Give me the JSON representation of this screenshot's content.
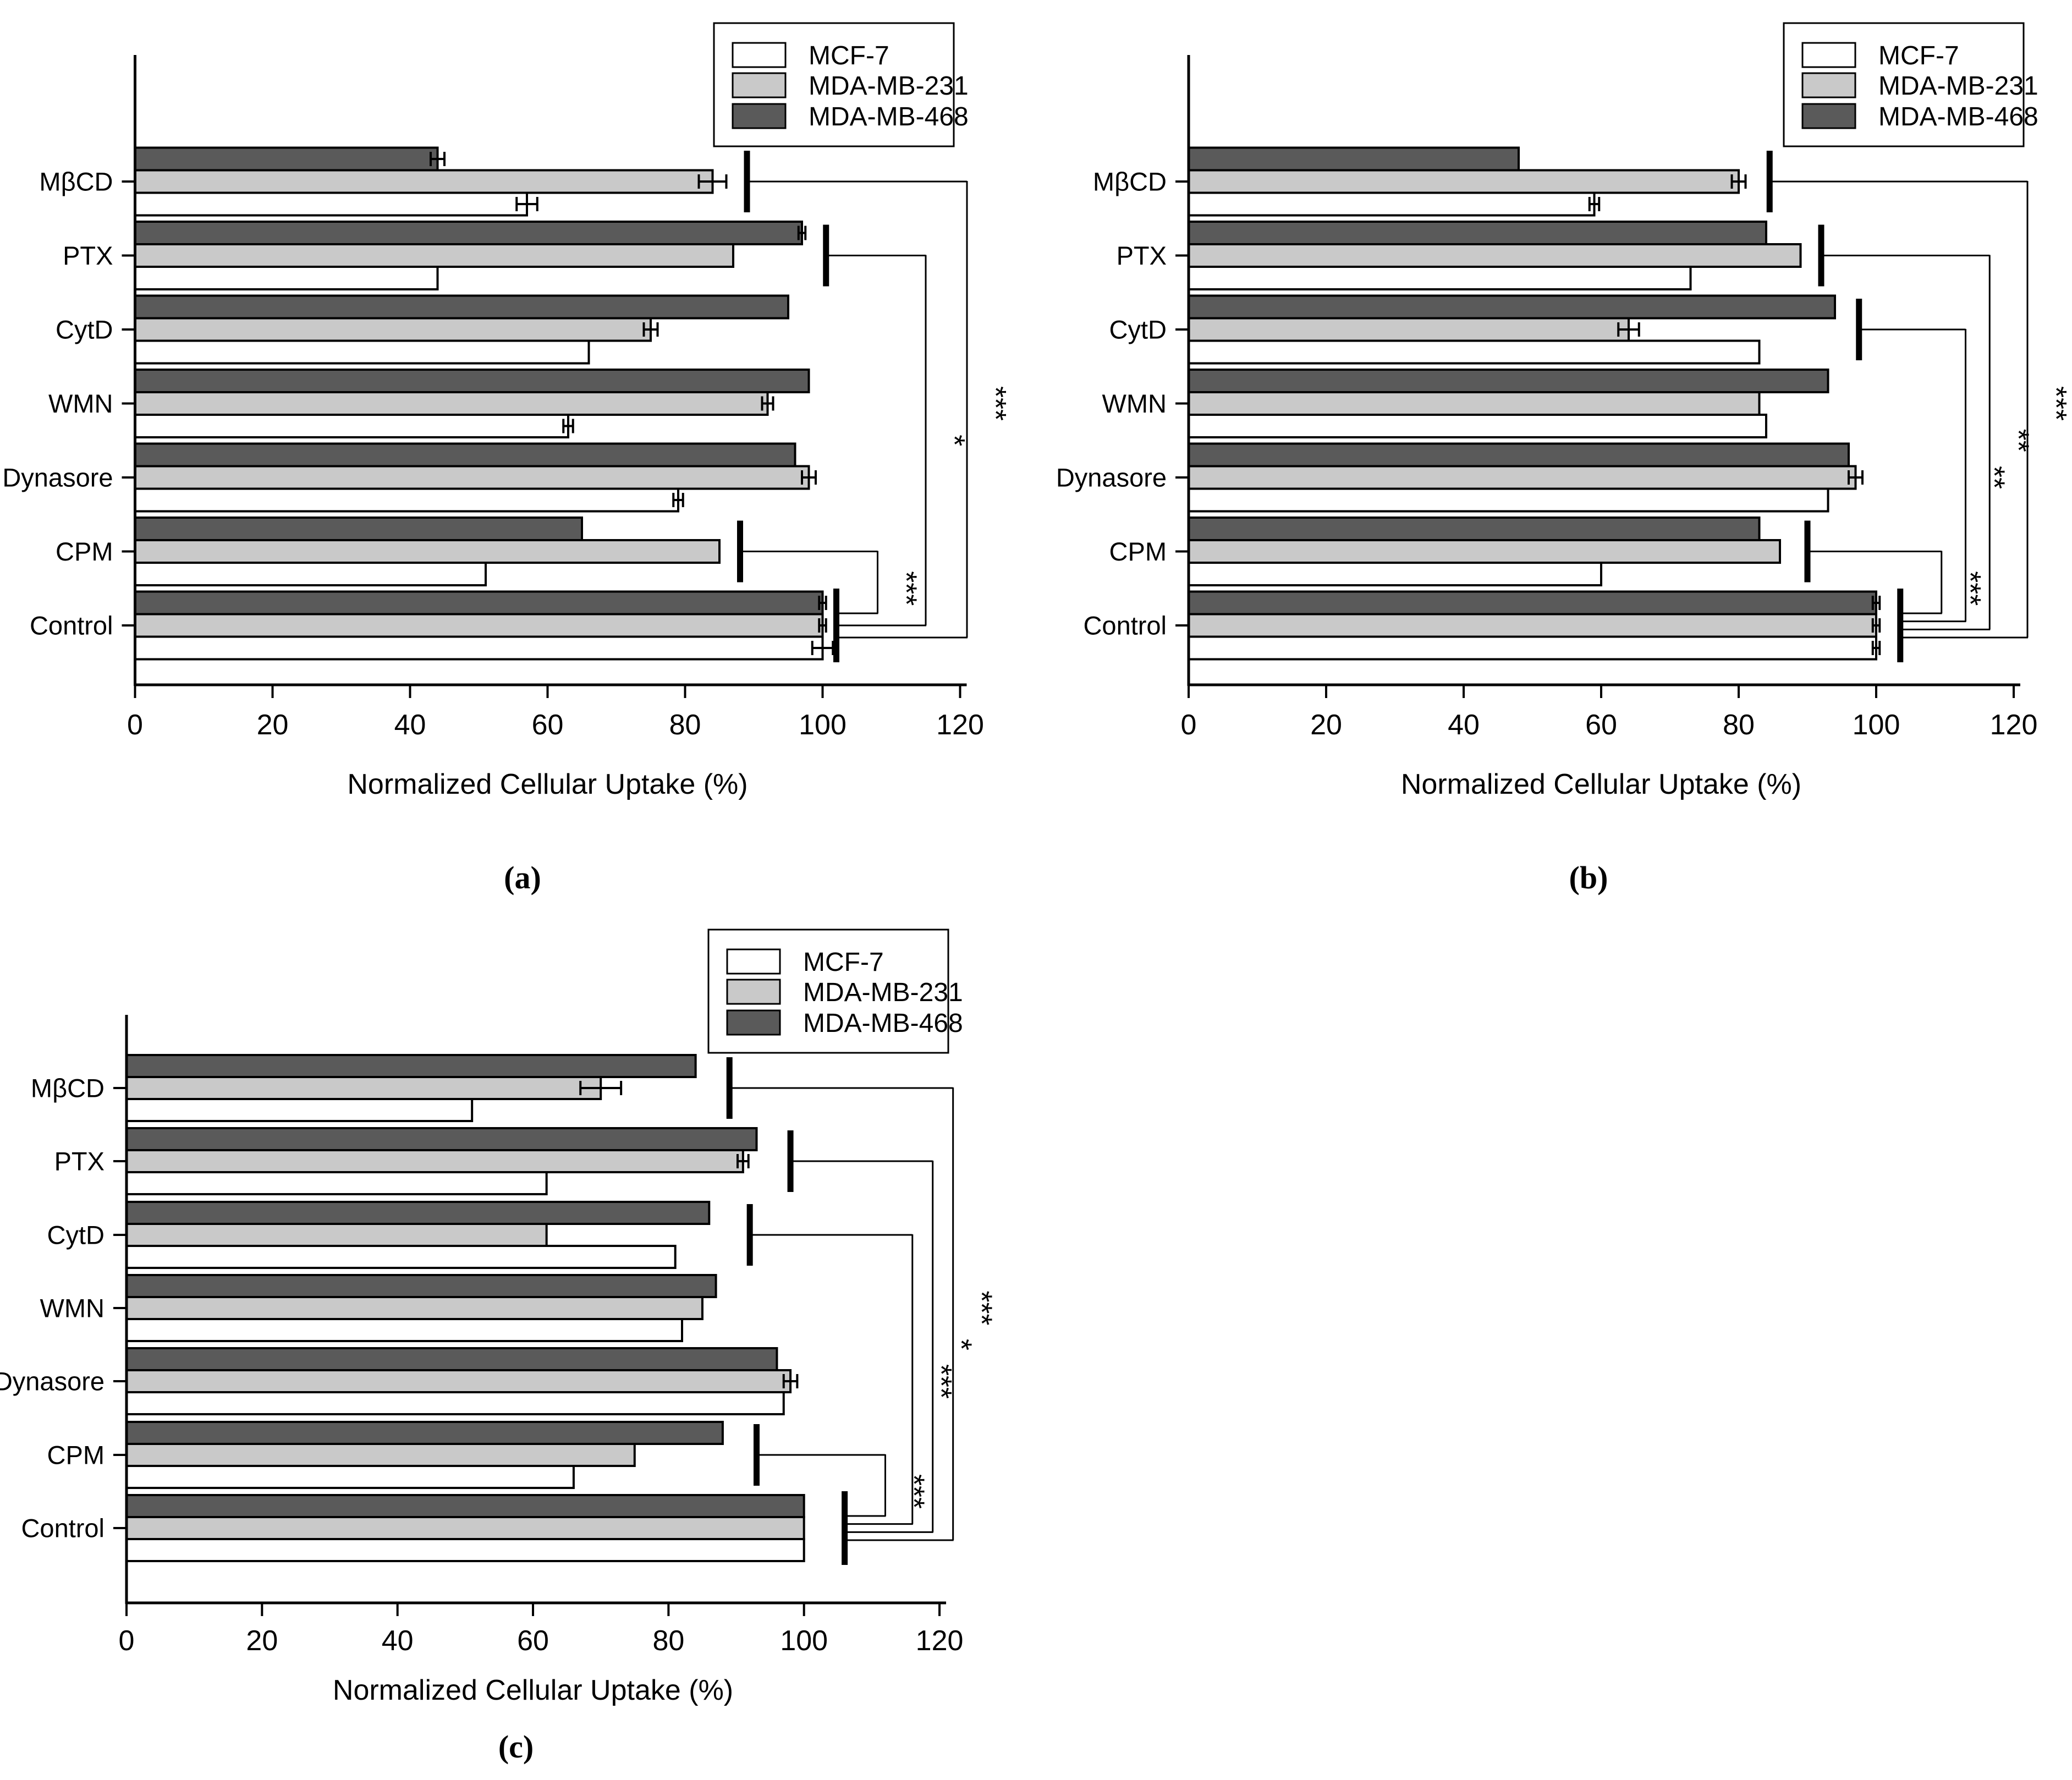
{
  "figure": {
    "background": "#ffffff",
    "bar_outline_color": "#000000",
    "legend": {
      "entries": [
        {
          "label": "MCF-7",
          "color": "#ffffff"
        },
        {
          "label": "MDA-MB-231",
          "color": "#c9c9c9"
        },
        {
          "label": "MDA-MB-468",
          "color": "#5a5a5a"
        }
      ]
    },
    "x_axis": {
      "title": "Normalized Cellular Uptake (%)",
      "ticks": [
        0,
        20,
        40,
        60,
        80,
        100,
        120
      ],
      "range": [
        0,
        120
      ]
    }
  },
  "chart_data": [
    {
      "id": "a",
      "panel_label": "(a)",
      "type": "bar",
      "orientation": "horizontal",
      "title": "",
      "xlabel": "Normalized Cellular Uptake (%)",
      "xlim": [
        0,
        120
      ],
      "categories": [
        "MβCD",
        "PTX",
        "CytD",
        "WMN",
        "Dynasore",
        "CPM",
        "Control"
      ],
      "series": [
        {
          "name": "MCF-7",
          "values": [
            57,
            44,
            66,
            63,
            79,
            51,
            100
          ],
          "errors": [
            1.5,
            0,
            0,
            0.7,
            0.7,
            0,
            1.5
          ]
        },
        {
          "name": "MDA-MB-231",
          "values": [
            84,
            87,
            75,
            92,
            98,
            85,
            100
          ],
          "errors": [
            2,
            0,
            1,
            0.8,
            1,
            0,
            0.5
          ]
        },
        {
          "name": "MDA-MB-468",
          "values": [
            44,
            97,
            95,
            98,
            96,
            65,
            100
          ],
          "errors": [
            1,
            0.5,
            0,
            0,
            0,
            0,
            0.5
          ]
        }
      ],
      "significance": [
        {
          "category": "MβCD",
          "label": "***",
          "cap_x": 89,
          "corner_x": 121
        },
        {
          "category": "PTX",
          "label": "*",
          "cap_x": 100.5,
          "corner_x": 115
        },
        {
          "category": "CPM",
          "label": "***",
          "cap_x": 88,
          "corner_x": 108
        }
      ],
      "control_category": "Control",
      "control_cap_x": 102
    },
    {
      "id": "b",
      "panel_label": "(b)",
      "type": "bar",
      "orientation": "horizontal",
      "title": "",
      "xlabel": "Normalized Cellular Uptake (%)",
      "xlim": [
        0,
        120
      ],
      "categories": [
        "MβCD",
        "PTX",
        "CytD",
        "WMN",
        "Dynasore",
        "CPM",
        "Control"
      ],
      "series": [
        {
          "name": "MCF-7",
          "values": [
            59,
            73,
            83,
            84,
            93,
            60,
            100
          ],
          "errors": [
            0.7,
            0,
            0,
            0,
            0,
            0,
            0.5
          ]
        },
        {
          "name": "MDA-MB-231",
          "values": [
            80,
            89,
            64,
            83,
            97,
            86,
            100
          ],
          "errors": [
            1,
            0,
            1.5,
            0,
            1,
            0,
            0.5
          ]
        },
        {
          "name": "MDA-MB-468",
          "values": [
            48,
            84,
            94,
            93,
            96,
            83,
            100
          ],
          "errors": [
            0,
            0,
            0,
            0,
            0,
            0,
            0.5
          ]
        }
      ],
      "significance": [
        {
          "category": "MβCD",
          "label": "***",
          "cap_x": 84.5,
          "corner_x": 122
        },
        {
          "category": "PTX",
          "label": "**",
          "cap_x": 92,
          "corner_x": 116.5
        },
        {
          "category": "CytD",
          "label": "**",
          "cap_x": 97.5,
          "corner_x": 113
        },
        {
          "category": "CPM",
          "label": "***",
          "cap_x": 90,
          "corner_x": 109.5
        }
      ],
      "control_category": "Control",
      "control_cap_x": 103.5
    },
    {
      "id": "c",
      "panel_label": "(c)",
      "type": "bar",
      "orientation": "horizontal",
      "title": "",
      "xlabel": "Normalized Cellular Uptake (%)",
      "xlim": [
        0,
        120
      ],
      "categories": [
        "MβCD",
        "PTX",
        "CytD",
        "WMN",
        "Dynasore",
        "CPM",
        "Control"
      ],
      "series": [
        {
          "name": "MCF-7",
          "values": [
            51,
            62,
            81,
            82,
            97,
            66,
            100
          ],
          "errors": [
            0,
            0,
            0,
            0,
            0,
            0,
            0
          ]
        },
        {
          "name": "MDA-MB-231",
          "values": [
            70,
            91,
            62,
            85,
            98,
            75,
            100
          ],
          "errors": [
            3,
            0.8,
            0,
            0,
            1,
            0,
            0
          ]
        },
        {
          "name": "MDA-MB-468",
          "values": [
            84,
            93,
            86,
            87,
            96,
            88,
            100
          ],
          "errors": [
            0,
            0,
            0,
            0,
            0,
            0,
            0
          ]
        }
      ],
      "significance": [
        {
          "category": "MβCD",
          "label": "***",
          "cap_x": 89,
          "corner_x": 122
        },
        {
          "category": "PTX",
          "label": "*",
          "cap_x": 98,
          "corner_x": 119
        },
        {
          "category": "CytD",
          "label": "***",
          "cap_x": 92,
          "corner_x": 116
        },
        {
          "category": "CPM",
          "label": "***",
          "cap_x": 93,
          "corner_x": 112
        }
      ],
      "control_category": "Control",
      "control_cap_x": 106
    }
  ]
}
